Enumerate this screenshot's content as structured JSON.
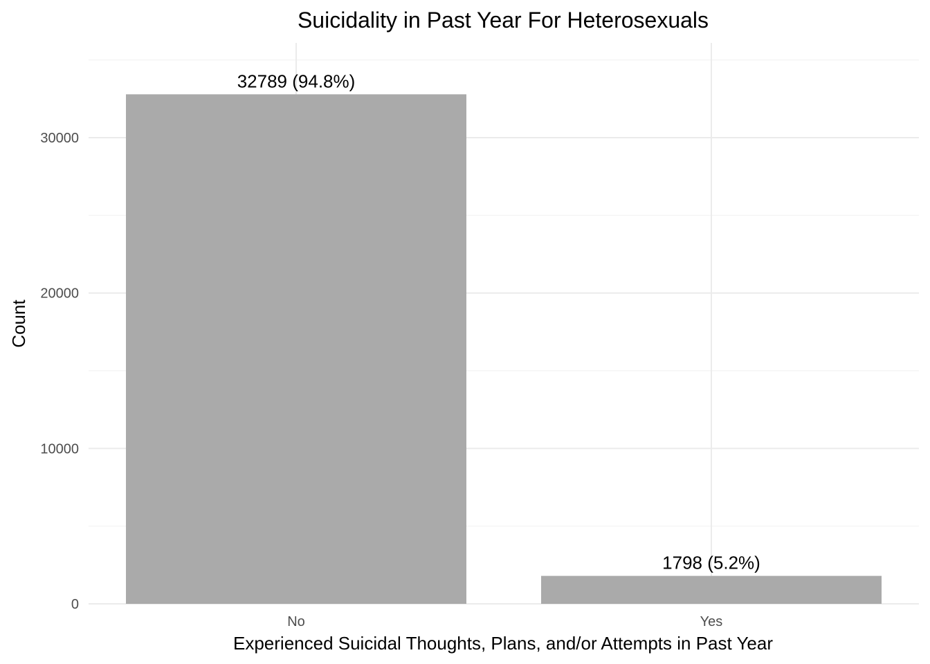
{
  "chart_data": {
    "type": "bar",
    "title": "Suicidality in Past Year For Heterosexuals",
    "xlabel": "Experienced Suicidal Thoughts, Plans, and/or Attempts in Past Year",
    "ylabel": "Count",
    "categories": [
      "No",
      "Yes"
    ],
    "values": [
      32789,
      1798
    ],
    "data_labels": [
      "32789 (94.8%)",
      "1798 (5.2%)"
    ],
    "ylim": [
      0,
      35000
    ],
    "y_ticks": [
      0,
      10000,
      20000,
      30000
    ],
    "y_tick_labels": [
      "0",
      "10000",
      "20000",
      "30000"
    ],
    "y_minor_ticks": [
      5000,
      15000,
      25000,
      35000
    ],
    "grid": true,
    "bar_color": "#aaaaaa",
    "legend": "none"
  }
}
